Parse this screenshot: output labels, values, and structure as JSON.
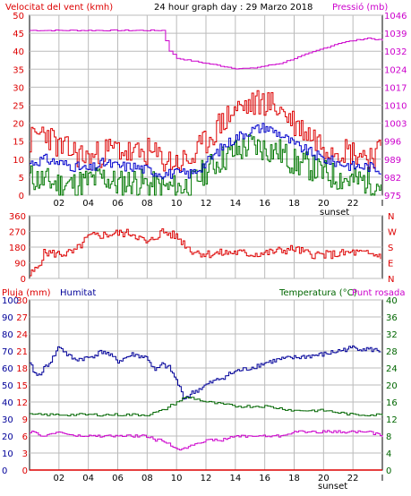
{
  "colors": {
    "wind_speed": "#dd0000",
    "wind_gust": "#0000cc",
    "wind_avg": "#007700",
    "pressure": "#cc00cc",
    "direction": "#dd0000",
    "humidity": "#000099",
    "temperature": "#006600",
    "dewpoint": "#cc00cc",
    "rain": "#dd0000",
    "frame": "#000000",
    "grid": "#bbbbbb"
  },
  "header": {
    "wind_title": "Velocitat del vent (kmh)",
    "graph_title": "24 hour graph day : 29 Marzo 2018",
    "pressure_title": "Pressió (mb)"
  },
  "legend": {
    "rain": "Pluja (mm)",
    "humidity": "Humitat",
    "temperature": "Temperatura (°C)",
    "dewpoint": "Punt rosada"
  },
  "sunset_label": "sunset",
  "chart_data": [
    {
      "type": "line",
      "name": "wind-pressure",
      "x_ticks": [
        "02",
        "04",
        "06",
        "08",
        "10",
        "12",
        "14",
        "16",
        "18",
        "20",
        "22",
        "I"
      ],
      "y_left": {
        "min": 0,
        "max": 50,
        "ticks": [
          0,
          5,
          10,
          15,
          20,
          25,
          30,
          35,
          40,
          45,
          50
        ]
      },
      "y_right": {
        "min": 975,
        "max": 1046,
        "ticks": [
          975,
          982,
          989,
          996,
          1003,
          1010,
          1017,
          1024,
          1032,
          1039,
          1046
        ]
      },
      "series": [
        {
          "key": "gust",
          "x": [
            0,
            1,
            2,
            3,
            4,
            5,
            6,
            7,
            8,
            9,
            10,
            11,
            12,
            13,
            14,
            15,
            16,
            17,
            18,
            19,
            20,
            21,
            22,
            23,
            24
          ],
          "values": [
            15,
            18,
            13,
            12,
            10,
            12,
            13,
            11,
            12,
            10,
            9,
            10,
            15,
            20,
            24,
            25,
            26,
            24,
            20,
            17,
            14,
            13,
            12,
            11,
            12
          ]
        },
        {
          "key": "avg",
          "x": [
            0,
            1,
            2,
            3,
            4,
            5,
            6,
            7,
            8,
            9,
            10,
            11,
            12,
            13,
            14,
            15,
            16,
            17,
            18,
            19,
            20,
            21,
            22,
            23,
            24
          ],
          "values": [
            9,
            10,
            9,
            8,
            7,
            9,
            8,
            8,
            7,
            6,
            6,
            6,
            9,
            13,
            16,
            18,
            19,
            17,
            14,
            12,
            10,
            9,
            8,
            8,
            7
          ]
        },
        {
          "key": "low",
          "x": [
            0,
            1,
            2,
            3,
            4,
            5,
            6,
            7,
            8,
            9,
            10,
            11,
            12,
            13,
            14,
            15,
            16,
            17,
            18,
            19,
            20,
            21,
            22,
            23,
            24
          ],
          "values": [
            5,
            4,
            3,
            3,
            4,
            5,
            3,
            4,
            3,
            2,
            2,
            3,
            7,
            10,
            12,
            14,
            13,
            12,
            9,
            8,
            6,
            5,
            4,
            4,
            3
          ]
        },
        {
          "key": "pressure",
          "x": [
            0,
            2,
            4,
            6,
            7,
            8,
            9,
            9.5,
            10,
            11,
            12,
            13,
            14,
            15,
            16,
            17,
            18,
            19,
            20,
            21,
            22,
            23,
            24
          ],
          "values": [
            1040,
            1040,
            1040,
            1040,
            1040,
            1040,
            1040,
            1032,
            1029,
            1028,
            1027,
            1026,
            1025,
            1025,
            1026,
            1027,
            1029,
            1031,
            1033,
            1035,
            1036,
            1037,
            1036
          ]
        }
      ]
    },
    {
      "type": "line",
      "name": "direction",
      "y_left": {
        "min": 0,
        "max": 360,
        "ticks": [
          0,
          90,
          180,
          270,
          360
        ]
      },
      "y_right_labels": [
        "N",
        "W",
        "S",
        "E",
        "N"
      ],
      "series": [
        {
          "key": "direction",
          "x": [
            0,
            0.5,
            1,
            2,
            3,
            4,
            5,
            6,
            7,
            8,
            9,
            10,
            11,
            12,
            13,
            14,
            15,
            16,
            17,
            18,
            19,
            20,
            21,
            22,
            23,
            24
          ],
          "values": [
            20,
            60,
            150,
            140,
            150,
            240,
            250,
            260,
            260,
            200,
            270,
            240,
            160,
            140,
            145,
            150,
            140,
            145,
            160,
            170,
            140,
            135,
            140,
            150,
            140,
            130
          ]
        }
      ]
    },
    {
      "type": "line",
      "name": "rain-humidity-temperature",
      "y_rain": {
        "min": 0,
        "max": 30,
        "ticks": [
          0,
          3,
          6,
          9,
          12,
          15,
          18,
          21,
          24,
          27,
          30
        ]
      },
      "y_humidity": {
        "min": 0,
        "max": 100,
        "ticks": [
          0,
          10,
          20,
          30,
          40,
          50,
          60,
          70,
          80,
          90,
          100
        ]
      },
      "y_temp": {
        "min": 0,
        "max": 40,
        "ticks": [
          0,
          4,
          8,
          12,
          16,
          20,
          24,
          28,
          32,
          36,
          40
        ]
      },
      "series": [
        {
          "key": "humidity",
          "x": [
            0,
            0.5,
            1,
            1.5,
            2,
            2.5,
            3,
            4,
            5,
            6,
            7,
            8,
            8.5,
            9,
            9.5,
            10,
            10.5,
            11,
            12,
            13,
            14,
            15,
            16,
            17,
            18,
            19,
            20,
            21,
            22,
            23,
            24
          ],
          "values": [
            62,
            55,
            60,
            65,
            73,
            68,
            65,
            66,
            70,
            64,
            68,
            66,
            58,
            62,
            60,
            52,
            42,
            45,
            50,
            54,
            58,
            60,
            63,
            65,
            66,
            67,
            68,
            70,
            72,
            71,
            70
          ]
        },
        {
          "key": "temperature",
          "x": [
            0,
            1,
            2,
            4,
            6,
            8,
            9,
            9.5,
            10,
            10.5,
            11,
            12,
            14,
            16,
            18,
            20,
            22,
            24
          ],
          "values": [
            13,
            13,
            13,
            13,
            13,
            13,
            14,
            15,
            16,
            17,
            17,
            16,
            15,
            15,
            14,
            14,
            13,
            13
          ]
        },
        {
          "key": "dewpoint",
          "x": [
            0,
            1,
            2,
            3,
            4,
            5,
            6,
            7,
            8,
            8.5,
            9,
            10,
            10.5,
            11,
            12,
            13,
            14,
            15,
            16,
            17,
            18,
            19,
            20,
            21,
            22,
            23,
            24
          ],
          "values": [
            9,
            8,
            9,
            8,
            8,
            8,
            8,
            8,
            8,
            7,
            7,
            5,
            5,
            6,
            7,
            7,
            8,
            8,
            8,
            8,
            9,
            9,
            9,
            9,
            9,
            9,
            8
          ]
        },
        {
          "key": "rain",
          "x": [
            0,
            24
          ],
          "values": [
            0,
            0
          ]
        }
      ]
    }
  ]
}
